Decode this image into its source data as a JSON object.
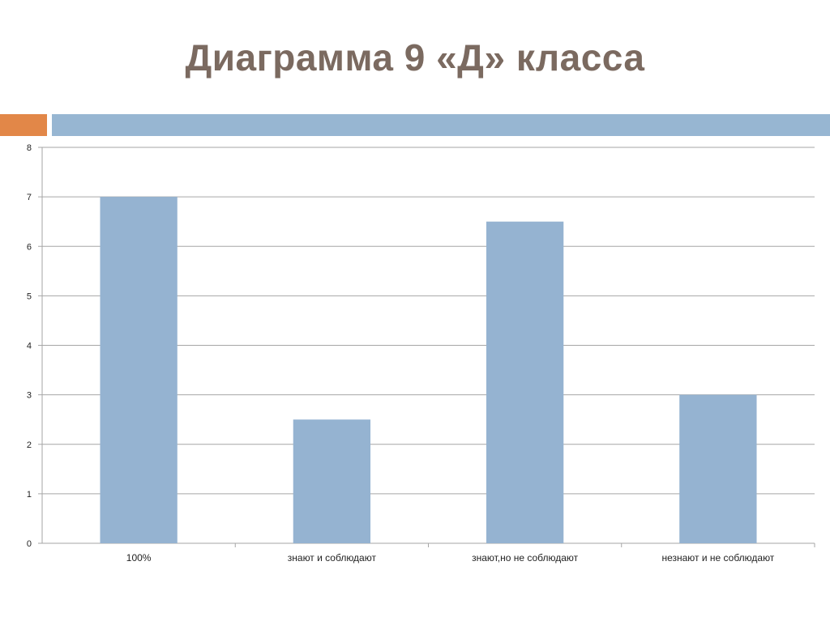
{
  "slide": {
    "title": "Диаграмма 9 «Д» класса"
  },
  "colors": {
    "bar": "#95b3d1",
    "accent_orange": "#e28748",
    "accent_blue": "#97b6d2",
    "title": "#7b6a60",
    "grid": "#a6a6a6"
  },
  "chart_data": {
    "type": "bar",
    "title": "",
    "xlabel": "",
    "ylabel": "",
    "categories": [
      "100%",
      "знают и соблюдают",
      "знают,но не соблюдают",
      "незнают и не соблюдают"
    ],
    "values": [
      7,
      2.5,
      6.5,
      3
    ],
    "ylim": [
      0,
      8
    ],
    "yticks": [
      0,
      1,
      2,
      3,
      4,
      5,
      6,
      7,
      8
    ],
    "grid": true,
    "legend": "none"
  }
}
